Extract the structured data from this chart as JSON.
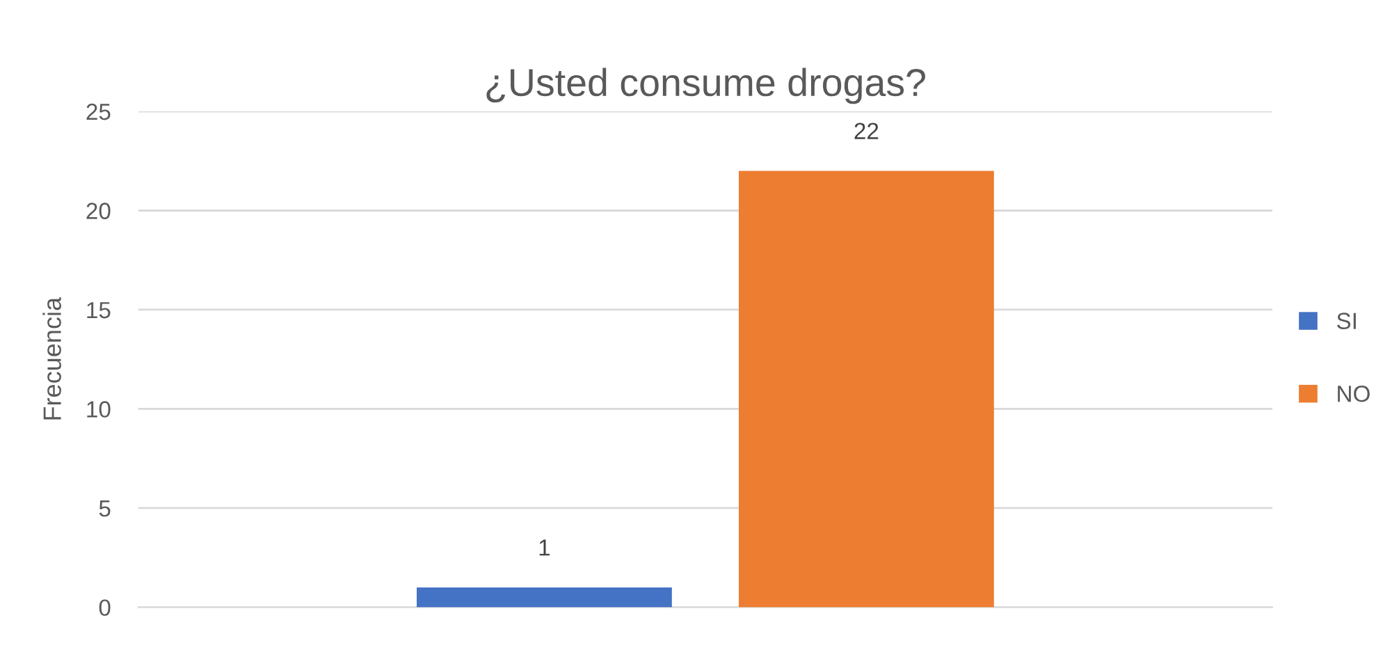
{
  "chart_data": {
    "type": "bar",
    "title": "¿Usted consume drogas?",
    "ylabel": "Frecuencia",
    "categories": [
      null
    ],
    "series": [
      {
        "name": "SI",
        "color": "#4472c4",
        "values": [
          1
        ]
      },
      {
        "name": "NO",
        "color": "#ed7d31",
        "values": [
          22
        ]
      }
    ],
    "ylim": [
      0,
      25
    ],
    "yticks": [
      0,
      5,
      10,
      15,
      20,
      25
    ],
    "grid": "y",
    "legend": "right",
    "data_labels": true
  }
}
